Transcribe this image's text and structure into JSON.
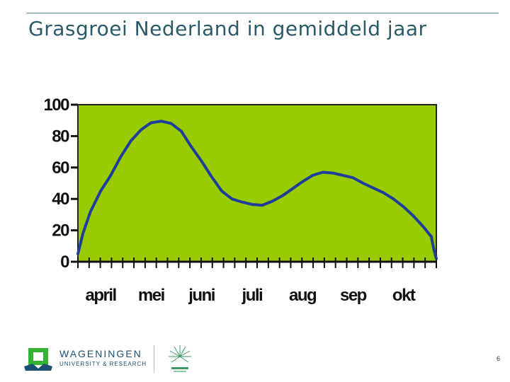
{
  "slide": {
    "title": "Grasgroei Nederland in gemiddeld jaar",
    "page_number": "6"
  },
  "footer": {
    "org_name": "WAGENINGEN",
    "org_subtitle": "UNIVERSITY & RESEARCH",
    "logo_icon": "wageningen-logo-icon",
    "centennial_icon": "wur-100-years-icon"
  },
  "chart_data": {
    "type": "line",
    "title": "",
    "xlabel": "",
    "ylabel": "",
    "ylim": [
      0,
      100
    ],
    "yticks": [
      0,
      20,
      40,
      60,
      80,
      100
    ],
    "categories": [
      "april",
      "mei",
      "juni",
      "juli",
      "aug",
      "sep",
      "okt"
    ],
    "x_range_months": [
      0,
      7.1
    ],
    "grid": false,
    "plot_background": "#99cc00",
    "line_color": "#1f3d9a",
    "series": [
      {
        "name": "",
        "points": [
          [
            0.0,
            5
          ],
          [
            0.1,
            18
          ],
          [
            0.25,
            32
          ],
          [
            0.45,
            45
          ],
          [
            0.65,
            55
          ],
          [
            0.85,
            67
          ],
          [
            1.05,
            77
          ],
          [
            1.25,
            84
          ],
          [
            1.45,
            88.5
          ],
          [
            1.65,
            89.5
          ],
          [
            1.85,
            88
          ],
          [
            2.05,
            83
          ],
          [
            2.25,
            73
          ],
          [
            2.45,
            64
          ],
          [
            2.65,
            54
          ],
          [
            2.85,
            45
          ],
          [
            3.05,
            40
          ],
          [
            3.25,
            38
          ],
          [
            3.45,
            36.5
          ],
          [
            3.65,
            36
          ],
          [
            3.85,
            38.5
          ],
          [
            4.05,
            42
          ],
          [
            4.25,
            46.5
          ],
          [
            4.45,
            51
          ],
          [
            4.65,
            55
          ],
          [
            4.85,
            57
          ],
          [
            5.05,
            56.5
          ],
          [
            5.25,
            55
          ],
          [
            5.45,
            53.5
          ],
          [
            5.65,
            50
          ],
          [
            5.85,
            47
          ],
          [
            6.05,
            44
          ],
          [
            6.25,
            40
          ],
          [
            6.45,
            35
          ],
          [
            6.65,
            29
          ],
          [
            6.85,
            22
          ],
          [
            7.0,
            16
          ],
          [
            7.05,
            8
          ],
          [
            7.1,
            2
          ]
        ]
      }
    ]
  }
}
